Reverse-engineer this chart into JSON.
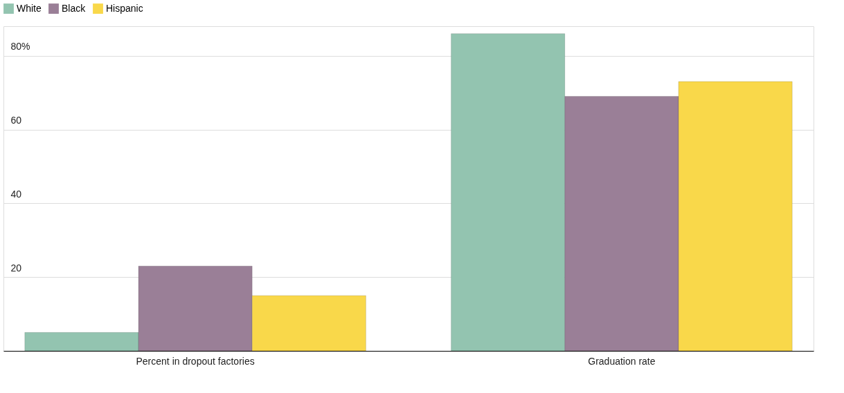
{
  "chart_data": {
    "type": "bar",
    "categories": [
      "Percent in dropout factories",
      "Graduation rate"
    ],
    "series": [
      {
        "name": "White",
        "color": "#93c4b0",
        "values": [
          5,
          86
        ]
      },
      {
        "name": "Black",
        "color": "#9a7f97",
        "values": [
          23,
          69
        ]
      },
      {
        "name": "Hispanic",
        "color": "#f9d84a",
        "values": [
          15,
          73
        ]
      }
    ],
    "ylim": [
      0,
      88
    ],
    "yticks": [
      20,
      40,
      60,
      {
        "value": 80,
        "label": "80%"
      }
    ],
    "grid": "y",
    "legend": "top left"
  }
}
